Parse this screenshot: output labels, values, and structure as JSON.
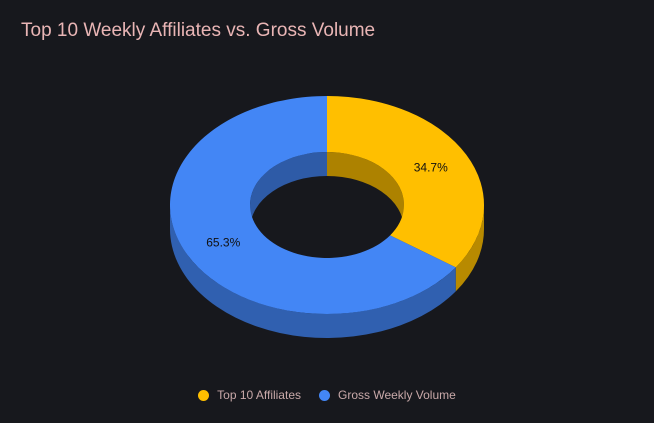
{
  "chart_data": {
    "type": "pie",
    "title": "Top 10 Weekly Affiliates vs. Gross Volume",
    "series": [
      {
        "name": "Top 10 Affiliates",
        "value": 34.7,
        "label": "34.7%",
        "color": "#ffbf00"
      },
      {
        "name": "Gross Weekly Volume",
        "value": 65.3,
        "label": "65.3%",
        "color": "#4386f5"
      }
    ],
    "legend_position": "bottom",
    "style": "3d-donut"
  }
}
